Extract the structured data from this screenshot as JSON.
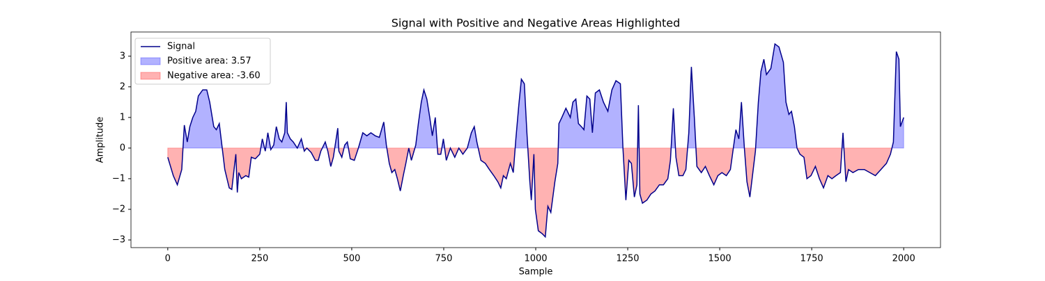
{
  "chart_data": {
    "type": "line",
    "title": "Signal with Positive and Negative Areas Highlighted",
    "x_label": "Sample",
    "y_label": "Amplitude",
    "x": [
      0,
      15,
      26,
      38,
      45,
      53,
      60,
      68,
      76,
      83,
      95,
      106,
      114,
      125,
      132,
      140,
      148,
      155,
      167,
      174,
      182,
      185,
      189,
      193,
      200,
      212,
      220,
      227,
      238,
      250,
      257,
      265,
      272,
      280,
      288,
      295,
      303,
      310,
      318,
      322,
      325,
      333,
      341,
      352,
      363,
      371,
      378,
      390,
      401,
      409,
      416,
      428,
      435,
      443,
      450,
      462,
      465,
      473,
      481,
      488,
      496,
      507,
      518,
      530,
      541,
      552,
      564,
      575,
      587,
      594,
      602,
      609,
      617,
      624,
      632,
      640,
      647,
      655,
      662,
      674,
      681,
      689,
      696,
      704,
      712,
      719,
      727,
      734,
      742,
      749,
      757,
      768,
      780,
      791,
      802,
      814,
      825,
      833,
      840,
      851,
      863,
      874,
      886,
      897,
      905,
      912,
      920,
      931,
      939,
      946,
      954,
      961,
      969,
      976,
      984,
      988,
      995,
      999,
      1007,
      1018,
      1026,
      1033,
      1041,
      1052,
      1060,
      1063,
      1071,
      1082,
      1094,
      1101,
      1109,
      1116,
      1124,
      1131,
      1139,
      1147,
      1154,
      1162,
      1173,
      1184,
      1196,
      1207,
      1218,
      1230,
      1237,
      1245,
      1253,
      1260,
      1268,
      1275,
      1279,
      1283,
      1290,
      1302,
      1313,
      1324,
      1336,
      1347,
      1359,
      1366,
      1374,
      1381,
      1389,
      1400,
      1408,
      1416,
      1423,
      1431,
      1438,
      1450,
      1461,
      1472,
      1484,
      1495,
      1506,
      1518,
      1529,
      1537,
      1544,
      1552,
      1559,
      1567,
      1574,
      1582,
      1590,
      1597,
      1605,
      1612,
      1620,
      1627,
      1639,
      1650,
      1661,
      1673,
      1680,
      1688,
      1695,
      1703,
      1710,
      1718,
      1729,
      1737,
      1748,
      1760,
      1771,
      1782,
      1794,
      1805,
      1816,
      1828,
      1835,
      1843,
      1850,
      1862,
      1877,
      1893,
      1908,
      1923,
      1938,
      1953,
      1964,
      1972,
      1980,
      1987,
      1991,
      2000
    ],
    "series": [
      {
        "name": "Signal",
        "color": "#00008b",
        "values": [
          -0.3,
          -0.9,
          -1.2,
          -0.7,
          0.75,
          0.2,
          0.7,
          1.0,
          1.2,
          1.7,
          1.9,
          1.9,
          1.5,
          0.7,
          0.6,
          0.8,
          0.0,
          -0.7,
          -1.3,
          -1.35,
          -0.5,
          -0.2,
          -1.45,
          -0.8,
          -1.0,
          -0.9,
          -0.95,
          -0.3,
          -0.35,
          -0.2,
          0.3,
          -0.1,
          0.5,
          -0.05,
          0.1,
          0.7,
          0.3,
          0.2,
          0.5,
          1.5,
          0.5,
          0.3,
          0.2,
          0.0,
          0.3,
          -0.1,
          0.0,
          -0.15,
          -0.4,
          -0.4,
          -0.1,
          0.2,
          -0.1,
          -0.6,
          -0.3,
          0.65,
          -0.1,
          -0.3,
          0.1,
          0.2,
          -0.35,
          -0.4,
          0.0,
          0.5,
          0.4,
          0.5,
          0.4,
          0.35,
          0.85,
          0.1,
          -0.5,
          -0.8,
          -0.7,
          -1.0,
          -1.4,
          -0.9,
          -0.5,
          0.0,
          -0.4,
          0.1,
          0.8,
          1.5,
          1.9,
          1.6,
          1.0,
          0.4,
          1.0,
          -0.2,
          -0.2,
          0.3,
          -0.4,
          0.0,
          -0.3,
          0.0,
          -0.2,
          0.0,
          0.5,
          0.7,
          0.2,
          -0.4,
          -0.5,
          -0.7,
          -0.9,
          -1.1,
          -1.3,
          -0.9,
          -1.0,
          -0.5,
          -0.8,
          0.3,
          1.4,
          2.25,
          2.1,
          0.5,
          -1.1,
          -1.7,
          -0.2,
          -2.0,
          -2.7,
          -2.8,
          -2.9,
          -1.9,
          -2.1,
          -1.1,
          -0.5,
          0.8,
          1.0,
          1.3,
          1.0,
          1.5,
          1.6,
          0.8,
          0.7,
          0.6,
          1.7,
          1.6,
          0.5,
          1.8,
          1.9,
          1.5,
          1.2,
          1.9,
          2.2,
          2.1,
          0.0,
          -1.7,
          -0.4,
          -0.5,
          -1.6,
          -1.2,
          1.4,
          -1.5,
          -1.8,
          -1.7,
          -1.5,
          -1.4,
          -1.2,
          -1.2,
          -1.0,
          -0.4,
          1.3,
          -0.3,
          -0.9,
          -0.9,
          -0.7,
          0.5,
          2.65,
          1.0,
          -0.6,
          -0.8,
          -0.6,
          -0.9,
          -1.2,
          -0.9,
          -0.8,
          -0.9,
          -0.7,
          0.0,
          0.6,
          0.3,
          1.5,
          0.0,
          -1.1,
          -1.6,
          -0.8,
          -0.1,
          1.5,
          2.5,
          2.9,
          2.4,
          2.6,
          3.4,
          3.3,
          2.8,
          1.5,
          1.1,
          1.2,
          0.7,
          0.0,
          -0.2,
          -0.3,
          -1.0,
          -0.9,
          -0.6,
          -1.0,
          -1.3,
          -0.9,
          -1.0,
          -0.9,
          -0.8,
          0.5,
          -1.1,
          -0.7,
          -0.8,
          -0.7,
          -0.7,
          -0.8,
          -0.9,
          -0.7,
          -0.5,
          -0.2,
          0.2,
          3.15,
          2.9,
          0.7,
          1.0
        ]
      }
    ],
    "fills": [
      {
        "name": "Positive area: 3.57",
        "color": "#0000ff"
      },
      {
        "name": "Negative area: -3.60",
        "color": "#ff0000"
      }
    ],
    "xlim": [
      -100,
      2100
    ],
    "ylim": [
      -3.25,
      3.79
    ],
    "xticks": [
      0,
      250,
      500,
      750,
      1000,
      1250,
      1500,
      1750,
      2000
    ],
    "yticks": [
      {
        "value": -3,
        "label": "−3"
      },
      {
        "value": -2,
        "label": "−2"
      },
      {
        "value": -1,
        "label": "−1"
      },
      0,
      1,
      2,
      3
    ],
    "legend": "upper left"
  }
}
